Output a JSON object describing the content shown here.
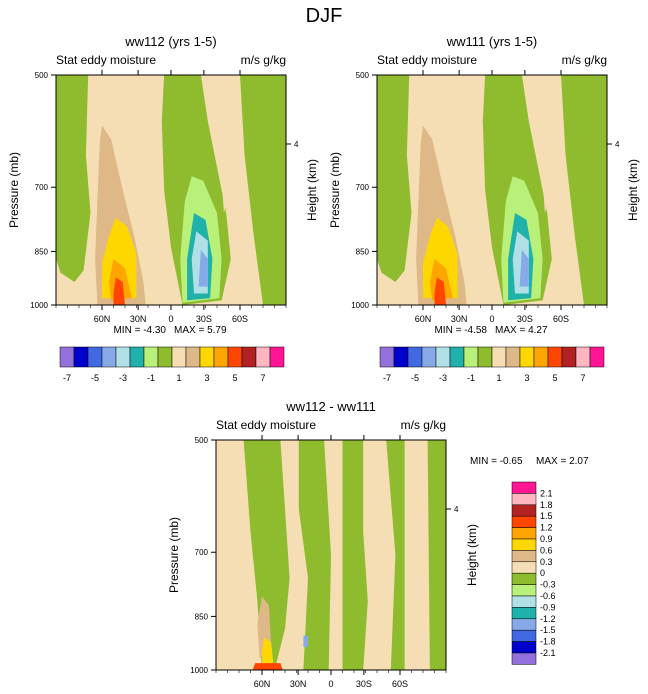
{
  "figure_title": "DJF",
  "chart_data": [
    {
      "type": "contour",
      "title": "ww112 (yrs 1-5)",
      "subtitle_left": "Stat eddy moisture",
      "subtitle_right": "m/s g/kg",
      "ylabel": "Pressure (mb)",
      "ylabel_right": "Height (km)",
      "y_ticks": [
        "500",
        "700",
        "850",
        "1000"
      ],
      "y_right_ticks": [
        "4"
      ],
      "x_ticks": [
        "60N",
        "30N",
        "0",
        "30S",
        "60S"
      ],
      "ylim": [
        1000,
        500
      ],
      "min_label": "MIN = -4.30",
      "max_label": "MAX =  5.79",
      "min": -4.3,
      "max": 5.79
    },
    {
      "type": "contour",
      "title": "ww111 (yrs 1-5)",
      "subtitle_left": "Stat eddy moisture",
      "subtitle_right": "m/s g/kg",
      "ylabel": "Pressure (mb)",
      "ylabel_right": "Height (km)",
      "y_ticks": [
        "500",
        "700",
        "850",
        "1000"
      ],
      "y_right_ticks": [
        "4"
      ],
      "x_ticks": [
        "60N",
        "30N",
        "0",
        "30S",
        "60S"
      ],
      "ylim": [
        1000,
        500
      ],
      "min_label": "MIN = -4.58",
      "max_label": "MAX =  4.27",
      "min": -4.58,
      "max": 4.27
    },
    {
      "type": "contour",
      "title": "ww112 - ww111",
      "subtitle_left": "Stat eddy moisture",
      "subtitle_right": "m/s g/kg",
      "ylabel": "Pressure (mb)",
      "ylabel_right": "Height (km)",
      "y_ticks": [
        "500",
        "700",
        "850",
        "1000"
      ],
      "y_right_ticks": [
        "4"
      ],
      "x_ticks": [
        "60N",
        "30N",
        "0",
        "30S",
        "60S"
      ],
      "ylim": [
        1000,
        500
      ],
      "min_label": "MIN =  -0.65",
      "max_label": "MAX =   2.07",
      "min": -0.65,
      "max": 2.07
    }
  ],
  "colorbar_top": {
    "orientation": "horizontal",
    "colors": [
      "#9370db",
      "#0000cd",
      "#4169e1",
      "#87a9e8",
      "#b0e0e6",
      "#20b2aa",
      "#b8f07a",
      "#8fbc2f",
      "#f5deb3",
      "#deb887",
      "#ffd700",
      "#ffa500",
      "#ff4500",
      "#b22222",
      "#ffb6c1",
      "#ff1493"
    ],
    "labels": [
      "-7",
      "-5",
      "-3",
      "-1",
      "1",
      "3",
      "5",
      "7"
    ]
  },
  "colorbar_bottom": {
    "orientation": "vertical",
    "colors": [
      "#ff1493",
      "#ffb6c1",
      "#b22222",
      "#ff4500",
      "#ffa500",
      "#ffd700",
      "#deb887",
      "#f5deb3",
      "#8fbc2f",
      "#b8f07a",
      "#b0e0e6",
      "#20b2aa",
      "#87a9e8",
      "#4169e1",
      "#0000cd",
      "#9370db"
    ],
    "labels": [
      "2.1",
      "1.8",
      "1.5",
      "1.2",
      "0.9",
      "0.6",
      "0.3",
      "0",
      "-0.3",
      "-0.6",
      "-0.9",
      "-1.2",
      "-1.5",
      "-1.8",
      "-2.1"
    ]
  },
  "palette": {
    "tan": "#f5deb3",
    "olive": "#8fbc2f",
    "lightgreen": "#b8f07a",
    "brown": "#deb887",
    "gold": "#ffd700",
    "orange": "#ffa500",
    "redorange": "#ff4500",
    "teal": "#20b2aa",
    "paleblue": "#b0e0e6",
    "blue": "#87a9e8",
    "white": "#ffffff"
  }
}
